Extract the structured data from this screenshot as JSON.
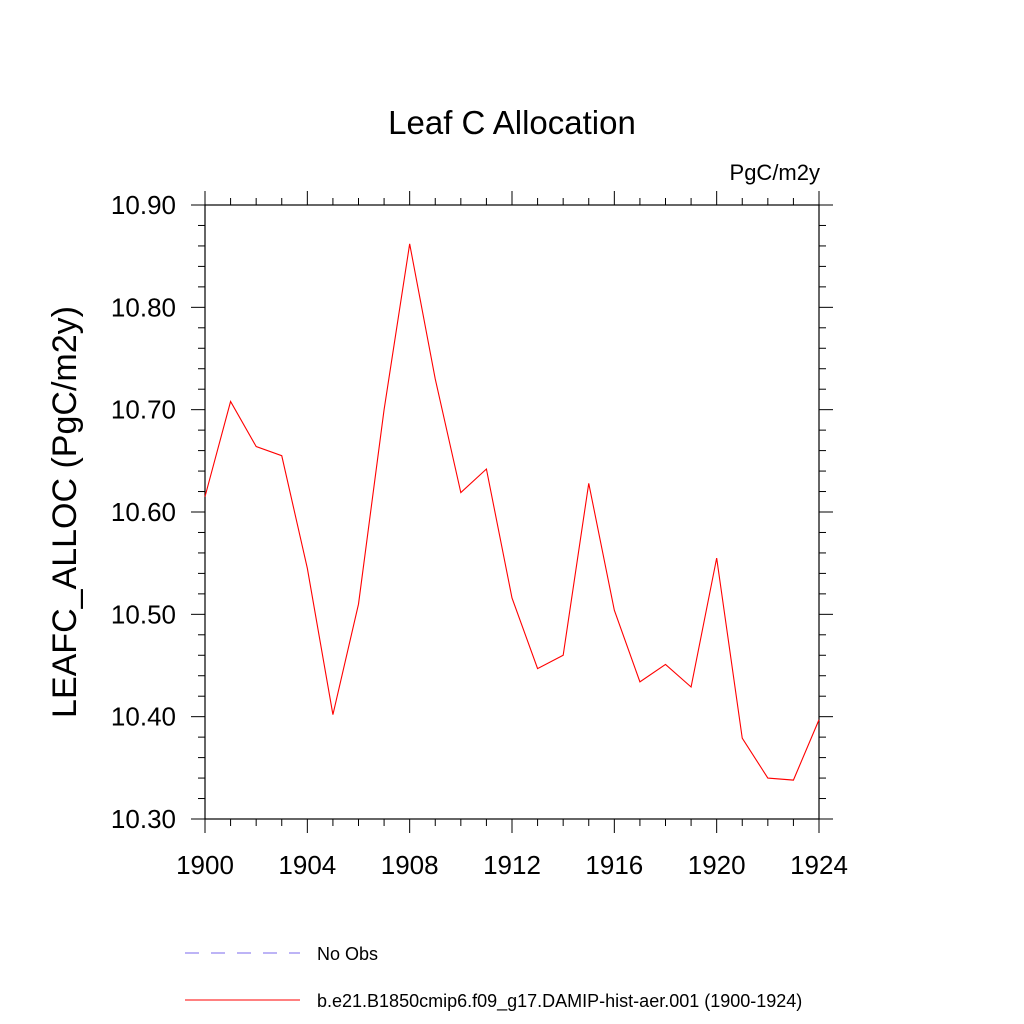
{
  "chart_data": {
    "type": "line",
    "title": "Leaf C Allocation",
    "units_label": "PgC/m2y",
    "ylabel": "LEAFC_ALLOC  (PgC/m2y)",
    "xlabel": "",
    "xlim": [
      1900,
      1924
    ],
    "ylim": [
      10.3,
      10.9
    ],
    "x_ticks": [
      "1900",
      "1904",
      "1908",
      "1912",
      "1916",
      "1920",
      "1924"
    ],
    "y_ticks": [
      "10.30",
      "10.40",
      "10.50",
      "10.60",
      "10.70",
      "10.80",
      "10.90"
    ],
    "x": [
      1900,
      1901,
      1902,
      1903,
      1904,
      1905,
      1906,
      1907,
      1908,
      1909,
      1910,
      1911,
      1912,
      1913,
      1914,
      1915,
      1916,
      1917,
      1918,
      1919,
      1920,
      1921,
      1922,
      1923,
      1924
    ],
    "series": [
      {
        "name": "b.e21.B1850cmip6.f09_g17.DAMIP-hist-aer.001 (1900-1924)",
        "color": "#ff0000",
        "values": [
          10.615,
          10.708,
          10.664,
          10.655,
          10.545,
          10.402,
          10.51,
          10.7,
          10.862,
          10.73,
          10.619,
          10.642,
          10.516,
          10.447,
          10.46,
          10.628,
          10.504,
          10.434,
          10.451,
          10.429,
          10.555,
          10.379,
          10.34,
          10.338,
          10.397
        ]
      }
    ],
    "legend": [
      {
        "label": "No Obs",
        "color": "#7b68ee",
        "style": "dashed"
      },
      {
        "label": "b.e21.B1850cmip6.f09_g17.DAMIP-hist-aer.001 (1900-1924)",
        "color": "#ff0000",
        "style": "solid"
      }
    ],
    "grid": false,
    "legend_position": "bottom"
  }
}
